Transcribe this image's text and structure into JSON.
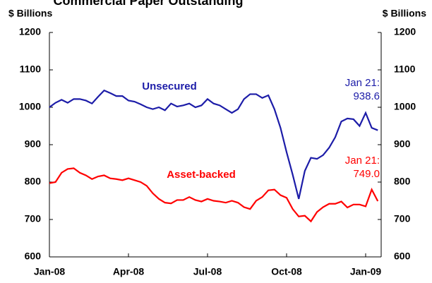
{
  "chart_data": {
    "type": "line",
    "title": "Commercial Paper Outstanding",
    "y_label": "$ Billions",
    "y2_label": "$ Billions",
    "categories": [
      "Jan-08",
      null,
      null,
      null,
      null,
      null,
      null,
      null,
      null,
      null,
      null,
      null,
      null,
      "Apr-08",
      null,
      null,
      null,
      null,
      null,
      null,
      null,
      null,
      null,
      null,
      null,
      null,
      "Jul-08",
      null,
      null,
      null,
      null,
      null,
      null,
      null,
      null,
      null,
      null,
      null,
      null,
      "Oct-08",
      null,
      null,
      null,
      null,
      null,
      null,
      null,
      null,
      null,
      null,
      null,
      null,
      "Jan-09",
      null,
      null
    ],
    "series": [
      {
        "name": "Unsecured",
        "color": "#1c1ca8",
        "annotation": "Jan 21:",
        "values": [
          1000,
          1012,
          1020,
          1012,
          1022,
          1022,
          1018,
          1010,
          1028,
          1045,
          1038,
          1030,
          1030,
          1018,
          1015,
          1008,
          1000,
          995,
          1000,
          992,
          1010,
          1002,
          1005,
          1010,
          1000,
          1005,
          1022,
          1010,
          1005,
          995,
          985,
          995,
          1022,
          1035,
          1035,
          1025,
          1032,
          995,
          945,
          880,
          820,
          755,
          830,
          865,
          862,
          872,
          892,
          920,
          962,
          970,
          968,
          950,
          985,
          945,
          938.6
        ]
      },
      {
        "name": "Asset-backed",
        "color": "#ff0000",
        "annotation": "Jan 21:",
        "values": [
          797,
          800,
          825,
          835,
          837,
          825,
          818,
          808,
          815,
          818,
          810,
          808,
          805,
          810,
          805,
          800,
          790,
          770,
          755,
          745,
          743,
          752,
          752,
          760,
          752,
          748,
          755,
          750,
          748,
          745,
          750,
          745,
          733,
          728,
          750,
          760,
          778,
          780,
          765,
          758,
          728,
          708,
          710,
          695,
          720,
          733,
          742,
          742,
          748,
          732,
          740,
          740,
          735,
          780,
          749.0
        ],
        "value_labels": [
          null,
          null,
          null,
          null,
          null,
          null,
          null,
          null,
          null,
          null,
          null,
          null,
          null,
          null,
          null,
          null,
          null,
          null,
          null,
          null,
          null,
          null,
          null,
          null,
          null,
          null,
          null,
          null,
          null,
          null,
          null,
          null,
          null,
          null,
          null,
          null,
          null,
          null,
          null,
          null,
          null,
          null,
          null,
          null,
          null,
          null,
          null,
          null,
          null,
          null,
          null,
          null,
          null,
          null,
          "749.0"
        ]
      }
    ],
    "ylim": [
      600,
      1200
    ],
    "yticks": [
      600,
      700,
      800,
      900,
      1000,
      1100,
      1200
    ],
    "y2lim": [
      600,
      1200
    ],
    "y2ticks": [
      600,
      700,
      800,
      900,
      1000,
      1100,
      1200
    ],
    "grid": false
  }
}
